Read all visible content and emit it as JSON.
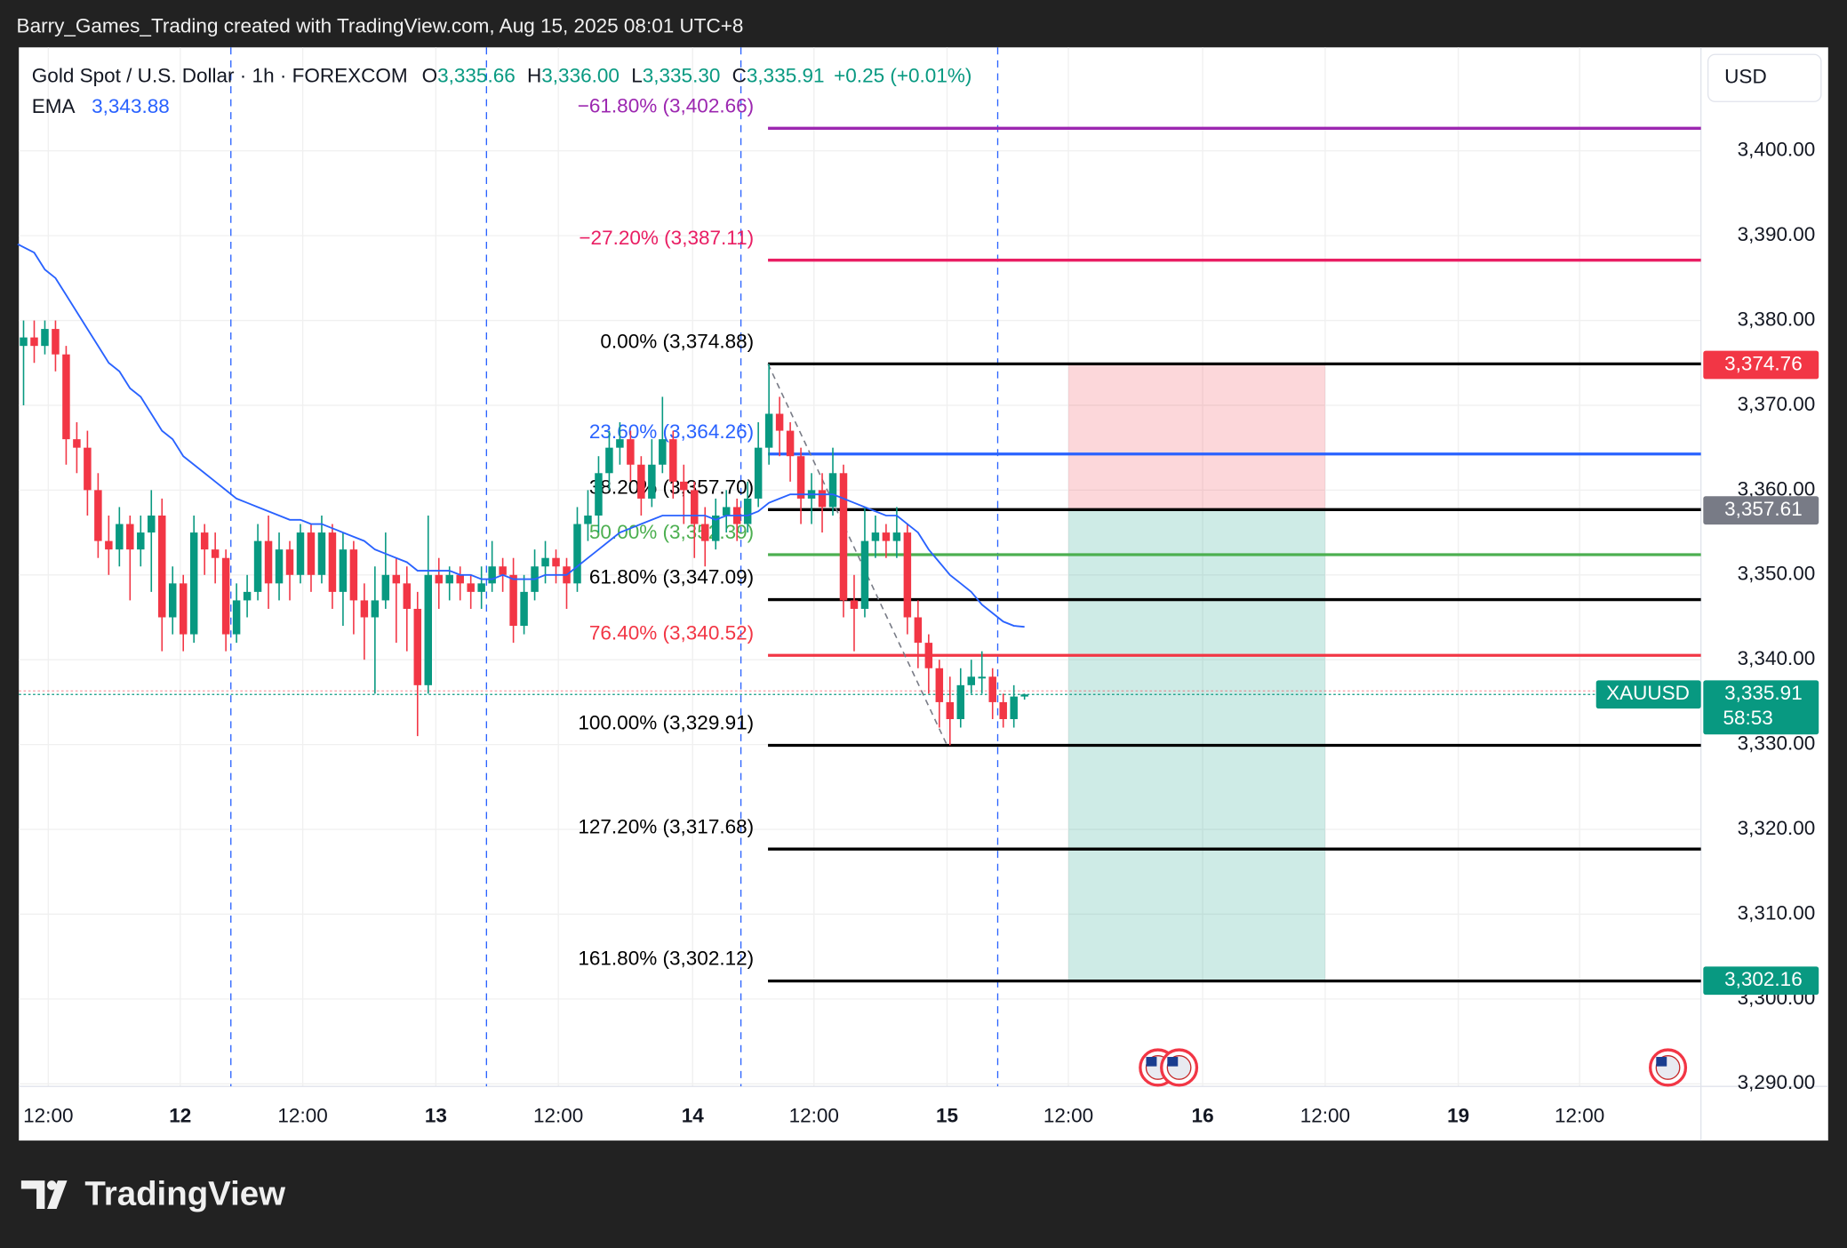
{
  "header": {
    "text": "Barry_Games_Trading created with TradingView.com, Aug 15, 2025 08:01 UTC+8"
  },
  "footer": {
    "logo": "TradingView"
  },
  "chart_data": {
    "type": "candlestick",
    "symbol": "Gold Spot / U.S. Dollar · 1h · FOREXCOM",
    "legend": [
      {
        "key": "O",
        "value": "3,335.66"
      },
      {
        "key": "H",
        "value": "3,336.00"
      },
      {
        "key": "L",
        "value": "3,335.30"
      },
      {
        "key": "C",
        "value": "3,335.91"
      }
    ],
    "change": "+0.25 (+0.01%)",
    "currency": "USD",
    "up_color": "#089981",
    "down_color": "#f23645",
    "open": [
      3377,
      3378,
      3377,
      3379,
      3376,
      3366,
      3365,
      3360,
      3354,
      3353,
      3356,
      3353,
      3355,
      3357,
      3345,
      3349,
      3343,
      3355,
      3353,
      3352,
      3343,
      3347,
      3348,
      3354,
      3349,
      3353,
      3350,
      3355,
      3350,
      3355,
      3348,
      3353,
      3347,
      3345,
      3347,
      3350,
      3349,
      3346,
      3337,
      3350,
      3349,
      3350,
      3349,
      3348,
      3349,
      3351,
      3350,
      3344,
      3348,
      3351,
      3352,
      3351,
      3349,
      3356,
      3357,
      3362,
      3365,
      3366,
      3363,
      3359,
      3363,
      3366,
      3361,
      3360,
      3356,
      3354,
      3357,
      3358,
      3356,
      3359,
      3365,
      3369,
      3367,
      3364,
      3359,
      3360,
      3358,
      3362,
      3347,
      3346,
      3354,
      3355,
      3354,
      3355,
      3345,
      3342,
      3339,
      3335,
      3333,
      3337,
      3338,
      3338,
      3335,
      3333,
      3335.66
    ],
    "high": [
      3380,
      3380,
      3380,
      3380,
      3377,
      3368,
      3367,
      3362,
      3357,
      3358,
      3357,
      3357,
      3360,
      3359,
      3351,
      3350,
      3357,
      3356,
      3355,
      3353,
      3349,
      3350,
      3356,
      3357,
      3355,
      3354,
      3356,
      3356,
      3357,
      3356,
      3355,
      3354,
      3349,
      3351,
      3355,
      3352,
      3351,
      3348,
      3357,
      3352,
      3351,
      3351,
      3350,
      3351,
      3354,
      3352,
      3352,
      3350,
      3353,
      3354,
      3353,
      3352,
      3358,
      3360,
      3364,
      3367,
      3368,
      3367,
      3364,
      3366,
      3371,
      3367,
      3363,
      3361,
      3358,
      3359,
      3360,
      3359,
      3361,
      3368,
      3374.88,
      3371,
      3368,
      3365,
      3362,
      3362,
      3365,
      3363,
      3350,
      3358,
      3357,
      3356,
      3358,
      3356,
      3347,
      3343,
      3340,
      3338,
      3339,
      3340,
      3341,
      3339,
      3336,
      3337,
      3336
    ],
    "low": [
      3370,
      3375,
      3376,
      3374,
      3363,
      3362,
      3357,
      3352,
      3350,
      3351,
      3347,
      3351,
      3348,
      3341,
      3343,
      3341,
      3342,
      3350,
      3349,
      3341,
      3342,
      3345,
      3347,
      3346,
      3347,
      3347,
      3349,
      3348,
      3349,
      3346,
      3344,
      3343,
      3340,
      3336,
      3346,
      3342,
      3341,
      3331,
      3336,
      3346,
      3347,
      3347,
      3346,
      3346,
      3348,
      3348,
      3342,
      3343,
      3347,
      3349,
      3349,
      3346,
      3348,
      3354,
      3355,
      3360,
      3363,
      3361,
      3357,
      3358,
      3362,
      3359,
      3356,
      3352,
      3351,
      3353,
      3355,
      3354,
      3355,
      3358,
      3363,
      3364,
      3361,
      3356,
      3356,
      3355,
      3357,
      3345,
      3341,
      3345,
      3352,
      3352,
      3352,
      3343,
      3339,
      3336,
      3332,
      3329.91,
      3332,
      3336,
      3336,
      3333,
      3332,
      3332,
      3335.3
    ],
    "close": [
      3378,
      3377,
      3379,
      3376,
      3366,
      3365,
      3360,
      3354,
      3353,
      3356,
      3353,
      3355,
      3357,
      3345,
      3349,
      3343,
      3355,
      3353,
      3352,
      3343,
      3347,
      3348,
      3354,
      3349,
      3353,
      3350,
      3355,
      3350,
      3355,
      3348,
      3353,
      3347,
      3345,
      3347,
      3350,
      3349,
      3346,
      3337,
      3350,
      3349,
      3350,
      3349,
      3348,
      3349,
      3351,
      3350,
      3344,
      3348,
      3351,
      3352,
      3351,
      3349,
      3356,
      3357,
      3362,
      3365,
      3366,
      3363,
      3359,
      3363,
      3366,
      3361,
      3360,
      3356,
      3354,
      3357,
      3358,
      3356,
      3359,
      3365,
      3369,
      3367,
      3364,
      3359,
      3360,
      3358,
      3362,
      3347,
      3346,
      3354,
      3355,
      3354,
      3355,
      3345,
      3342,
      3339,
      3335,
      3333,
      3337,
      3338,
      3338,
      3335,
      3333,
      3335.66,
      3335.91
    ],
    "ema": {
      "name": "EMA",
      "value_label": "3,343.88",
      "color": "#2962ff",
      "values": [
        3389,
        3388,
        3386,
        3385,
        3383,
        3381,
        3379,
        3377,
        3375,
        3374,
        3372,
        3371,
        3369,
        3367,
        3366,
        3364,
        3363,
        3362,
        3361,
        3360,
        3359,
        3358.5,
        3358,
        3357.5,
        3357,
        3356.5,
        3356.5,
        3356,
        3356,
        3355.5,
        3355,
        3354.5,
        3354,
        3353,
        3352.5,
        3352,
        3351.5,
        3350.5,
        3350.5,
        3350.5,
        3350.5,
        3350,
        3350,
        3349.5,
        3349.5,
        3350,
        3349.5,
        3349.5,
        3349.5,
        3350,
        3350,
        3350,
        3351,
        3352,
        3353,
        3354,
        3355,
        3355.5,
        3356,
        3356.5,
        3357,
        3357,
        3357,
        3357,
        3357,
        3356.5,
        3357,
        3357,
        3357,
        3357.5,
        3358.5,
        3359,
        3359.5,
        3359.5,
        3359.5,
        3359.5,
        3359.5,
        3359,
        3358.5,
        3358,
        3357.5,
        3357,
        3357,
        3356,
        3355,
        3353,
        3351.5,
        3350,
        3349,
        3348,
        3346.5,
        3345.5,
        3344.5,
        3344,
        3343.88
      ]
    },
    "ylim": [
      3289.7,
      3412.2
    ],
    "yticks": [
      {
        "value": 3290,
        "label": "3,290.00"
      },
      {
        "value": 3300,
        "label": "3,300.00"
      },
      {
        "value": 3310,
        "label": "3,310.00"
      },
      {
        "value": 3320,
        "label": "3,320.00"
      },
      {
        "value": 3330,
        "label": "3,330.00"
      },
      {
        "value": 3340,
        "label": "3,340.00"
      },
      {
        "value": 3350,
        "label": "3,350.00"
      },
      {
        "value": 3360,
        "label": "3,360.00"
      },
      {
        "value": 3370,
        "label": "3,370.00"
      },
      {
        "value": 3380,
        "label": "3,380.00"
      },
      {
        "value": 3390,
        "label": "3,390.00"
      },
      {
        "value": 3400,
        "label": "3,400.00"
      }
    ],
    "xticks": [
      {
        "label": "12:00",
        "bold": false
      },
      {
        "label": "12",
        "bold": true
      },
      {
        "label": "12:00",
        "bold": false
      },
      {
        "label": "13",
        "bold": true
      },
      {
        "label": "12:00",
        "bold": false
      },
      {
        "label": "14",
        "bold": true
      },
      {
        "label": "12:00",
        "bold": false
      },
      {
        "label": "15",
        "bold": true
      },
      {
        "label": "12:00",
        "bold": false
      },
      {
        "label": "16",
        "bold": true
      },
      {
        "label": "12:00",
        "bold": false
      },
      {
        "label": "19",
        "bold": true
      },
      {
        "label": "12:00",
        "bold": false
      }
    ],
    "grid": true,
    "fib_levels": [
      {
        "label": "−61.80% (3,402.66)",
        "value": 3402.66,
        "color": "#9c27b0"
      },
      {
        "label": "−27.20% (3,387.11)",
        "value": 3387.11,
        "color": "#e91e63"
      },
      {
        "label": "0.00% (3,374.88)",
        "value": 3374.88,
        "color": "#000000"
      },
      {
        "label": "23.60% (3,364.26)",
        "value": 3364.26,
        "color": "#2962ff"
      },
      {
        "label": "38.20% (3,357.70)",
        "value": 3357.7,
        "color": "#000000"
      },
      {
        "label": "50.00% (3,352.39)",
        "value": 3352.39,
        "color": "#4caf50"
      },
      {
        "label": "61.80% (3,347.09)",
        "value": 3347.09,
        "color": "#000000"
      },
      {
        "label": "76.40% (3,340.52)",
        "value": 3340.52,
        "color": "#f23645"
      },
      {
        "label": "100.00% (3,329.91)",
        "value": 3329.91,
        "color": "#000000"
      },
      {
        "label": "127.20% (3,317.68)",
        "value": 3317.68,
        "color": "#000000"
      },
      {
        "label": "161.80% (3,302.12)",
        "value": 3302.12,
        "color": "#000000"
      }
    ],
    "position": {
      "stop": {
        "value": 3374.76,
        "label": "3,374.76"
      },
      "entry": {
        "value": 3357.61,
        "label": "3,357.61"
      },
      "target": {
        "value": 3302.16,
        "label": "3,302.16"
      }
    },
    "last_price": {
      "symbol": "XAUUSD",
      "value": 3335.91,
      "label": "3,335.91",
      "countdown": "58:53"
    }
  }
}
